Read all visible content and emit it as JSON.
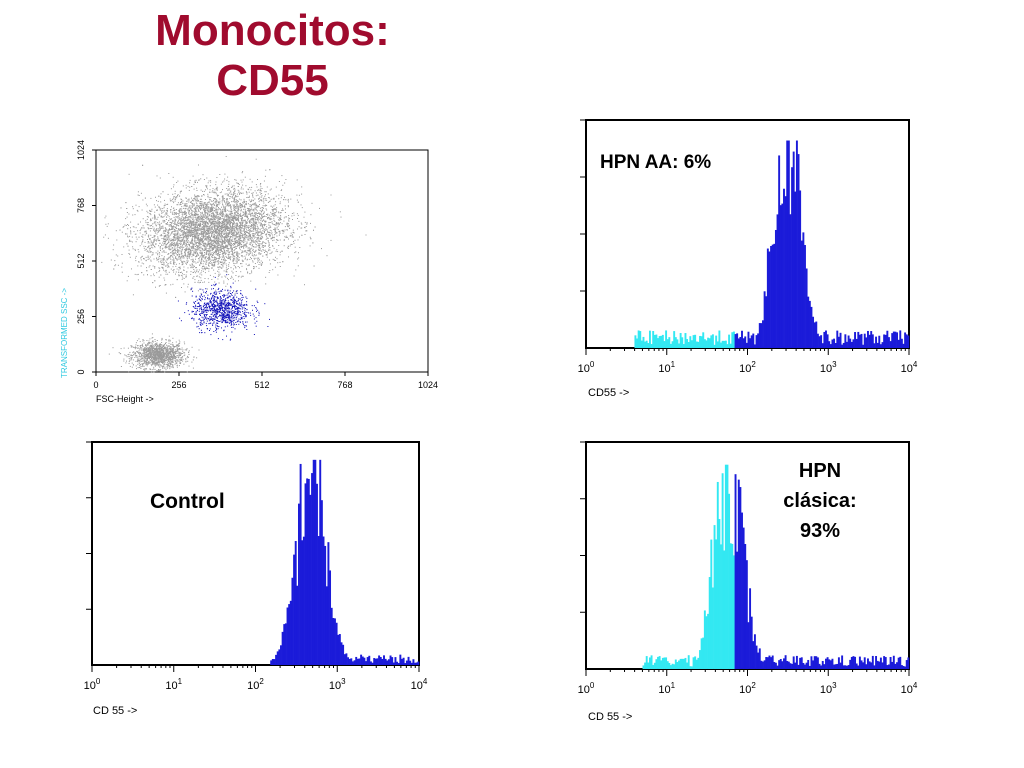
{
  "title_lines": [
    "Monocitos:",
    "CD55"
  ],
  "colors": {
    "title": "#a00b2e",
    "gated": "#1b1bd9",
    "ungated": "#33e8f2",
    "scatter_all": "#9a9a9a",
    "scatter_gate": "#1010b8",
    "axis_ssc": "#2ec9e0"
  },
  "chart_data": [
    {
      "type": "scatter",
      "xlabel": "FSC-Height ->",
      "ylabel": "TRANSFORMED SSC ->",
      "xticks": [
        "0",
        "256",
        "512",
        "768",
        "1024"
      ],
      "yticks": [
        "0",
        "256",
        "512",
        "768",
        "1024"
      ],
      "xlim": [
        0,
        1024
      ],
      "ylim": [
        0,
        1024
      ],
      "populations": [
        {
          "name": "",
          "color": "#9a9a9a",
          "cx": 190,
          "cy": 80,
          "spread": [
            40,
            30
          ],
          "count": 1400
        },
        {
          "name": "",
          "color": "#9a9a9a",
          "cx": 360,
          "cy": 650,
          "spread": [
            110,
            95
          ],
          "count": 6000
        },
        {
          "name": "",
          "color": "#1010b8",
          "cx": 385,
          "cy": 290,
          "spread": [
            45,
            45
          ],
          "count": 900
        }
      ]
    },
    {
      "type": "histogram",
      "annotation": "HPN AA: 6%",
      "xlabel": "CD55 ->",
      "xscale": "log",
      "xlim": [
        1,
        10000
      ],
      "tick_exponents": [
        "0",
        "1",
        "2",
        "3",
        "4"
      ],
      "peak_x": 315,
      "peak_height_frac": 0.91,
      "gate_x": 70,
      "tail": {
        "from": 4,
        "level": 0.05
      }
    },
    {
      "type": "histogram",
      "annotation": "Control",
      "xlabel": "CD 55 ->",
      "xscale": "log",
      "xlim": [
        1,
        10000
      ],
      "tick_exponents": [
        "0",
        "1",
        "2",
        "3",
        "4"
      ],
      "peak_x": 480,
      "peak_height_frac": 0.92,
      "gate_x": 1,
      "tail": {
        "from": 150,
        "level": 0.03
      }
    },
    {
      "type": "histogram",
      "annotation": "HPN clásica: 93%",
      "xlabel": "CD 55 ->",
      "xscale": "log",
      "xlim": [
        1,
        10000
      ],
      "tick_exponents": [
        "0",
        "1",
        "2",
        "3",
        "4"
      ],
      "peak_x": 58,
      "peak_height_frac": 0.9,
      "gate_x": 70,
      "tail": {
        "from": 5,
        "level": 0.04
      }
    }
  ]
}
